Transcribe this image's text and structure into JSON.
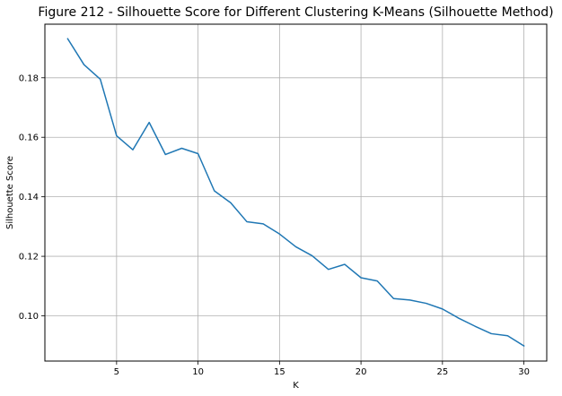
{
  "chart_data": {
    "type": "line",
    "title": "Figure 212 - Silhouette Score for Different Clustering K-Means (Silhouette Method)",
    "xlabel": "K",
    "ylabel": "Silhouette Score",
    "xlim": [
      0.6,
      31.4
    ],
    "ylim": [
      0.0848,
      0.198
    ],
    "xticks": [
      5,
      10,
      15,
      20,
      25,
      30
    ],
    "yticks": [
      0.1,
      0.12,
      0.14,
      0.16,
      0.18
    ],
    "xtick_labels": [
      "5",
      "10",
      "15",
      "20",
      "25",
      "30"
    ],
    "ytick_labels": [
      "0.10",
      "0.12",
      "0.14",
      "0.16",
      "0.18"
    ],
    "grid": true,
    "series": [
      {
        "color": "#1f77b4",
        "x": [
          2,
          3,
          4,
          5,
          6,
          7,
          8,
          9,
          10,
          11,
          12,
          13,
          14,
          15,
          16,
          17,
          18,
          19,
          20,
          21,
          22,
          23,
          24,
          25,
          26,
          27,
          28,
          29,
          30
        ],
        "y": [
          0.1931,
          0.1844,
          0.1795,
          0.1605,
          0.1558,
          0.165,
          0.1542,
          0.1563,
          0.1545,
          0.142,
          0.138,
          0.1316,
          0.1309,
          0.1275,
          0.1232,
          0.1202,
          0.1156,
          0.1173,
          0.1128,
          0.1117,
          0.1058,
          0.1053,
          0.1042,
          0.1023,
          0.0992,
          0.0965,
          0.094,
          0.0933,
          0.0899
        ]
      }
    ]
  }
}
